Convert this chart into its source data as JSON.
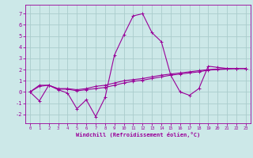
{
  "xlabel": "Windchill (Refroidissement éolien,°C)",
  "background_color": "#cce8e8",
  "grid_color": "#aacccc",
  "xlim": [
    -0.5,
    23.5
  ],
  "ylim": [
    -2.8,
    7.8
  ],
  "xticks": [
    0,
    1,
    2,
    3,
    4,
    5,
    6,
    7,
    8,
    9,
    10,
    11,
    12,
    13,
    14,
    15,
    16,
    17,
    18,
    19,
    20,
    21,
    22,
    23
  ],
  "yticks": [
    -2,
    -1,
    0,
    1,
    2,
    3,
    4,
    5,
    6,
    7
  ],
  "line_color": "#990099",
  "lines": [
    {
      "x": [
        0,
        1,
        2,
        3,
        4,
        5,
        6,
        7,
        8,
        9,
        10,
        11,
        12,
        13,
        14,
        15,
        16,
        17,
        18,
        19,
        20,
        21,
        22,
        23
      ],
      "y": [
        0.0,
        -0.8,
        0.6,
        0.2,
        -0.1,
        -1.5,
        -0.7,
        -2.2,
        -0.5,
        3.3,
        5.1,
        6.8,
        7.0,
        5.3,
        4.5,
        1.5,
        0.0,
        -0.3,
        0.3,
        2.3,
        2.2,
        2.1,
        2.1,
        2.1
      ]
    },
    {
      "x": [
        0,
        1,
        2,
        3,
        4,
        5,
        6,
        7,
        8,
        9,
        10,
        11,
        12,
        13,
        14,
        15,
        16,
        17,
        18,
        19,
        20,
        21,
        22,
        23
      ],
      "y": [
        0.0,
        0.6,
        0.6,
        0.3,
        0.3,
        0.2,
        0.3,
        0.5,
        0.6,
        0.8,
        1.0,
        1.1,
        1.2,
        1.35,
        1.5,
        1.6,
        1.7,
        1.8,
        1.9,
        2.0,
        2.05,
        2.1,
        2.1,
        2.1
      ]
    },
    {
      "x": [
        0,
        1,
        2,
        3,
        4,
        5,
        6,
        7,
        8,
        9,
        10,
        11,
        12,
        13,
        14,
        15,
        16,
        17,
        18,
        19,
        20,
        21,
        22,
        23
      ],
      "y": [
        0.0,
        0.5,
        0.6,
        0.25,
        0.25,
        0.1,
        0.2,
        0.3,
        0.4,
        0.6,
        0.8,
        0.95,
        1.05,
        1.2,
        1.35,
        1.5,
        1.6,
        1.7,
        1.8,
        1.95,
        2.0,
        2.05,
        2.1,
        2.1
      ]
    }
  ]
}
